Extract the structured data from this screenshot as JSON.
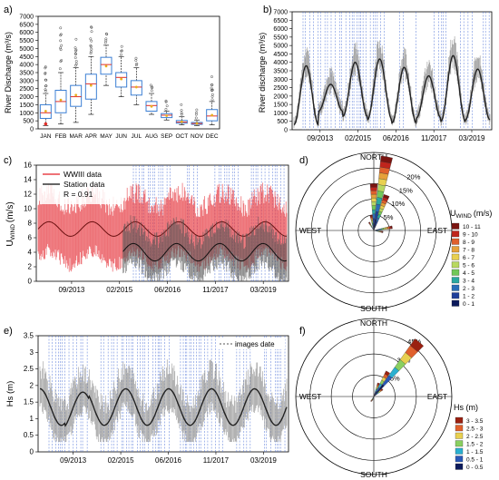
{
  "figure": {
    "panels": [
      "a)",
      "b)",
      "c)",
      "d)",
      "e)",
      "f)"
    ]
  },
  "chart_data": [
    {
      "panel": "a)",
      "type": "box",
      "ylabel": "River Discharge (m³/s)",
      "yticks": [
        "0",
        "500",
        "1000",
        "1500",
        "2000",
        "2500",
        "3000",
        "3500",
        "4000",
        "4500",
        "5000",
        "5500",
        "6000",
        "6500",
        "7000"
      ],
      "ylim": [
        0,
        7000
      ],
      "categories": [
        "JAN",
        "FEB",
        "MAR",
        "APR",
        "MAY",
        "JUN",
        "JUL",
        "AUG",
        "SEP",
        "OCT",
        "NOV",
        "DEC"
      ],
      "q1": [
        650,
        1000,
        1400,
        1850,
        3400,
        2600,
        2100,
        1100,
        700,
        350,
        280,
        500
      ],
      "median": [
        1000,
        1700,
        2000,
        2800,
        4000,
        3200,
        2600,
        1450,
        850,
        420,
        330,
        800
      ],
      "q3": [
        1500,
        2400,
        2700,
        3400,
        4450,
        3500,
        3000,
        1700,
        950,
        520,
        400,
        1200
      ],
      "whisker_low": [
        200,
        300,
        400,
        900,
        2700,
        2000,
        1500,
        900,
        550,
        250,
        200,
        250
      ],
      "whisker_high": [
        2200,
        3500,
        3800,
        4500,
        5200,
        4500,
        3800,
        2200,
        1100,
        750,
        550,
        1700
      ],
      "mean": [
        1100,
        1800,
        2100,
        2700,
        3900,
        3100,
        2600,
        1400,
        820,
        440,
        340,
        850
      ],
      "box_color": "#3b7fd4",
      "mean_color": "#e8b020",
      "median_color": "#e0302a",
      "outlier_color": "#444444"
    },
    {
      "panel": "b)",
      "type": "line",
      "ylabel": "River discharge (m³/s)",
      "yticks": [
        "0",
        "500",
        "1000",
        "1500",
        "2000",
        "2500",
        "3000",
        "3500",
        "4000",
        "4500",
        "5000",
        "5500",
        "6000",
        "6500",
        "7000"
      ],
      "ylim": [
        0,
        7000
      ],
      "xticks": [
        "09/2013",
        "02/2015",
        "06/2016",
        "11/2017",
        "03/2019"
      ],
      "peaks": [
        3800,
        2700,
        4000,
        4200,
        3700,
        3200,
        4400,
        3600
      ],
      "troughs": [
        300,
        1100,
        800,
        600,
        400,
        700,
        500,
        600
      ],
      "line_color": "#222222",
      "band_color": "#999999",
      "date_lines_color": "#4a6fd6"
    },
    {
      "panel": "c)",
      "type": "line",
      "ylabel": "UWIND (m/s)",
      "ylabel_main": "U",
      "ylabel_sub": "WIND",
      "ylabel_unit": "(m/s)",
      "yticks": [
        "0",
        "2",
        "4",
        "6",
        "8",
        "10",
        "12",
        "14",
        "16"
      ],
      "ylim": [
        0,
        16
      ],
      "xticks": [
        "09/2013",
        "02/2015",
        "06/2016",
        "11/2017",
        "03/2019"
      ],
      "legend": [
        "WWIII data",
        "Station data",
        "R = 0.91"
      ],
      "series_colors": [
        "#e8434a",
        "#333333"
      ],
      "wwiii_mean": 7.2,
      "station_mean": 4.0
    },
    {
      "panel": "d)",
      "type": "windrose",
      "directions": [
        "NORTH",
        "EAST",
        "SOUTH",
        "WEST"
      ],
      "rings": [
        "5%",
        "10%",
        "15%",
        "20%"
      ],
      "legend_title": "UWIND (m/s)",
      "legend_main": "U",
      "legend_sub": "WIND",
      "legend_unit": "(m/s)",
      "bins": [
        "10 - 11",
        "9 - 10",
        "8 - 9",
        "7 - 8",
        "6 - 7",
        "5 - 6",
        "4 - 5",
        "3 - 4",
        "2 - 3",
        "1 - 2",
        "0 - 1"
      ],
      "bin_colors": [
        "#7a1410",
        "#c0251c",
        "#e0602c",
        "#e6a03a",
        "#e8d050",
        "#b8d860",
        "#72c858",
        "#2aa8a0",
        "#2a6fb8",
        "#1f3f9a",
        "#0c1a5c"
      ],
      "sectors": [
        {
          "dir": 10,
          "pct": 24
        },
        {
          "dir": 0,
          "pct": 15
        },
        {
          "dir": 20,
          "pct": 12
        },
        {
          "dir": 350,
          "pct": 5
        },
        {
          "dir": 80,
          "pct": 6
        },
        {
          "dir": 330,
          "pct": 3
        },
        {
          "dir": 100,
          "pct": 3
        }
      ]
    },
    {
      "panel": "e)",
      "type": "line",
      "ylabel": "Hs (m)",
      "yticks": [
        "0",
        "0.5",
        "1",
        "1.5",
        "2",
        "2.5",
        "3",
        "3.5"
      ],
      "ylim": [
        0,
        3.5
      ],
      "xticks": [
        "09/2013",
        "02/2015",
        "06/2016",
        "11/2017",
        "03/2019"
      ],
      "legend": [
        "images date"
      ],
      "line_color": "#222222",
      "band_color": "#999999"
    },
    {
      "panel": "f)",
      "type": "windrose",
      "directions": [
        "NORTH",
        "EAST",
        "SOUTH",
        "WEST"
      ],
      "rings": [
        "15%",
        "30%",
        "45%"
      ],
      "legend_title": "Hs (m)",
      "bins": [
        "3 - 3.5",
        "2.5 - 3",
        "2 - 2.5",
        "1.5 - 2",
        "1 - 1.5",
        "0.5 - 1",
        "0 - 0.5"
      ],
      "bin_colors": [
        "#9a2010",
        "#e0602c",
        "#e8d050",
        "#8ad060",
        "#2ab0d0",
        "#2a58b8",
        "#0c1a5c"
      ],
      "sectors": [
        {
          "dir": 40,
          "pct": 50
        },
        {
          "dir": 30,
          "pct": 20
        },
        {
          "dir": 20,
          "pct": 10
        },
        {
          "dir": 50,
          "pct": 8
        },
        {
          "dir": 210,
          "pct": 4
        },
        {
          "dir": 200,
          "pct": 3
        }
      ]
    }
  ]
}
